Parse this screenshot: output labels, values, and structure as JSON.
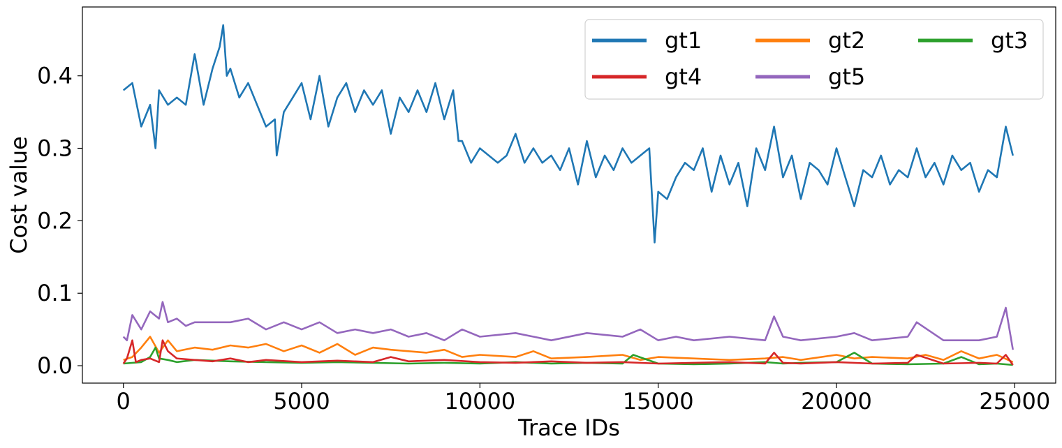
{
  "chart_data": {
    "type": "line",
    "title": "",
    "xlabel": "Trace IDs",
    "ylabel": "Cost value",
    "xlim": [
      -1150,
      26150
    ],
    "ylim": [
      -0.024,
      0.495
    ],
    "xticks": [
      0,
      5000,
      10000,
      15000,
      20000,
      25000
    ],
    "xtick_labels": [
      "0",
      "5000",
      "10000",
      "15000",
      "20000",
      "25000"
    ],
    "yticks": [
      0.0,
      0.1,
      0.2,
      0.3,
      0.4
    ],
    "ytick_labels": [
      "0.0",
      "0.1",
      "0.2",
      "0.3",
      "0.4"
    ],
    "grid": false,
    "legend": {
      "placement": "top-right",
      "columns": 3
    },
    "series": [
      {
        "name": "gt1",
        "color": "#1f77b4",
        "x": [
          0,
          250,
          500,
          750,
          900,
          1000,
          1250,
          1500,
          1750,
          2000,
          2250,
          2500,
          2700,
          2800,
          2900,
          3000,
          3250,
          3500,
          3750,
          4000,
          4250,
          4300,
          4500,
          4750,
          5000,
          5250,
          5500,
          5750,
          6000,
          6250,
          6500,
          6750,
          7000,
          7250,
          7500,
          7750,
          8000,
          8250,
          8500,
          8750,
          9000,
          9250,
          9400,
          9500,
          9750,
          10000,
          10250,
          10500,
          10750,
          11000,
          11250,
          11500,
          11750,
          12000,
          12250,
          12500,
          12750,
          13000,
          13250,
          13500,
          13750,
          14000,
          14250,
          14500,
          14750,
          14900,
          15000,
          15250,
          15500,
          15750,
          16000,
          16250,
          16500,
          16750,
          17000,
          17250,
          17500,
          17750,
          18000,
          18250,
          18500,
          18750,
          19000,
          19250,
          19500,
          19750,
          20000,
          20250,
          20500,
          20750,
          21000,
          21250,
          21500,
          21750,
          22000,
          22250,
          22500,
          22750,
          23000,
          23250,
          23500,
          23750,
          24000,
          24250,
          24500,
          24750,
          24950
        ],
        "values": [
          0.38,
          0.39,
          0.33,
          0.36,
          0.3,
          0.38,
          0.36,
          0.37,
          0.36,
          0.43,
          0.36,
          0.41,
          0.44,
          0.47,
          0.4,
          0.41,
          0.37,
          0.39,
          0.36,
          0.33,
          0.34,
          0.29,
          0.35,
          0.37,
          0.39,
          0.34,
          0.4,
          0.33,
          0.37,
          0.39,
          0.35,
          0.38,
          0.36,
          0.38,
          0.32,
          0.37,
          0.35,
          0.38,
          0.35,
          0.39,
          0.34,
          0.38,
          0.31,
          0.31,
          0.28,
          0.3,
          0.29,
          0.28,
          0.29,
          0.32,
          0.28,
          0.3,
          0.28,
          0.29,
          0.27,
          0.3,
          0.25,
          0.31,
          0.26,
          0.29,
          0.27,
          0.3,
          0.28,
          0.29,
          0.3,
          0.17,
          0.24,
          0.23,
          0.26,
          0.28,
          0.27,
          0.3,
          0.24,
          0.29,
          0.25,
          0.28,
          0.22,
          0.3,
          0.27,
          0.33,
          0.26,
          0.29,
          0.23,
          0.28,
          0.27,
          0.25,
          0.3,
          0.26,
          0.22,
          0.27,
          0.26,
          0.29,
          0.25,
          0.27,
          0.26,
          0.3,
          0.26,
          0.28,
          0.25,
          0.29,
          0.27,
          0.28,
          0.24,
          0.27,
          0.26,
          0.33,
          0.29
        ]
      },
      {
        "name": "gt2",
        "color": "#ff7f0e",
        "x": [
          0,
          250,
          500,
          750,
          1000,
          1250,
          1500,
          2000,
          2500,
          3000,
          3500,
          4000,
          4500,
          5000,
          5500,
          6000,
          6500,
          7000,
          7500,
          8000,
          8500,
          9000,
          9500,
          10000,
          11000,
          11500,
          12000,
          13000,
          14000,
          14500,
          15000,
          16000,
          17000,
          18000,
          18500,
          19000,
          20000,
          20500,
          21000,
          22000,
          22500,
          23000,
          23500,
          24000,
          24500,
          24950
        ],
        "values": [
          0.008,
          0.012,
          0.025,
          0.04,
          0.018,
          0.035,
          0.02,
          0.025,
          0.022,
          0.028,
          0.025,
          0.03,
          0.02,
          0.028,
          0.018,
          0.03,
          0.015,
          0.025,
          0.022,
          0.02,
          0.018,
          0.022,
          0.012,
          0.015,
          0.012,
          0.02,
          0.01,
          0.012,
          0.015,
          0.008,
          0.012,
          0.01,
          0.008,
          0.01,
          0.012,
          0.008,
          0.015,
          0.01,
          0.012,
          0.01,
          0.015,
          0.008,
          0.02,
          0.01,
          0.015,
          0.005
        ]
      },
      {
        "name": "gt3",
        "color": "#2ca02c",
        "x": [
          0,
          500,
          750,
          900,
          1000,
          1250,
          1500,
          2000,
          3000,
          4000,
          5000,
          6000,
          7000,
          8000,
          9000,
          10000,
          11000,
          12000,
          13000,
          14000,
          14300,
          15000,
          16000,
          17000,
          18000,
          18500,
          19000,
          20000,
          20500,
          21000,
          22000,
          23000,
          23500,
          24000,
          24500,
          24950
        ],
        "values": [
          0.003,
          0.005,
          0.012,
          0.025,
          0.01,
          0.008,
          0.005,
          0.008,
          0.006,
          0.005,
          0.004,
          0.005,
          0.004,
          0.003,
          0.004,
          0.003,
          0.005,
          0.003,
          0.004,
          0.003,
          0.015,
          0.003,
          0.002,
          0.003,
          0.005,
          0.003,
          0.004,
          0.005,
          0.018,
          0.003,
          0.002,
          0.003,
          0.012,
          0.002,
          0.003,
          0.001
        ]
      },
      {
        "name": "gt4",
        "color": "#d62728",
        "x": [
          0,
          100,
          250,
          350,
          500,
          750,
          1000,
          1100,
          1250,
          1500,
          2000,
          2500,
          3000,
          3500,
          4000,
          5000,
          6000,
          7000,
          7500,
          8000,
          9000,
          10000,
          11000,
          12000,
          13000,
          14000,
          15000,
          16000,
          17000,
          18000,
          18250,
          18500,
          19000,
          20000,
          21000,
          22000,
          22250,
          23000,
          24000,
          24500,
          24750,
          24950
        ],
        "values": [
          0.003,
          0.01,
          0.035,
          0.005,
          0.008,
          0.01,
          0.005,
          0.035,
          0.02,
          0.01,
          0.008,
          0.006,
          0.01,
          0.005,
          0.008,
          0.005,
          0.007,
          0.005,
          0.012,
          0.006,
          0.008,
          0.005,
          0.004,
          0.006,
          0.004,
          0.005,
          0.003,
          0.004,
          0.005,
          0.003,
          0.018,
          0.004,
          0.003,
          0.005,
          0.003,
          0.004,
          0.015,
          0.003,
          0.004,
          0.003,
          0.015,
          0.001
        ]
      },
      {
        "name": "gt5",
        "color": "#9467bd",
        "x": [
          0,
          100,
          250,
          500,
          750,
          1000,
          1100,
          1250,
          1500,
          1750,
          2000,
          2500,
          3000,
          3500,
          4000,
          4500,
          5000,
          5500,
          6000,
          6500,
          7000,
          7500,
          8000,
          8500,
          9000,
          9500,
          10000,
          11000,
          12000,
          13000,
          14000,
          14500,
          15000,
          15500,
          16000,
          17000,
          18000,
          18250,
          18500,
          19000,
          20000,
          20500,
          21000,
          22000,
          22250,
          23000,
          24000,
          24500,
          24750,
          24950
        ],
        "values": [
          0.04,
          0.035,
          0.07,
          0.05,
          0.075,
          0.065,
          0.088,
          0.06,
          0.065,
          0.055,
          0.06,
          0.06,
          0.06,
          0.065,
          0.05,
          0.06,
          0.05,
          0.06,
          0.045,
          0.05,
          0.045,
          0.05,
          0.04,
          0.045,
          0.035,
          0.05,
          0.04,
          0.045,
          0.035,
          0.045,
          0.04,
          0.05,
          0.035,
          0.04,
          0.035,
          0.04,
          0.035,
          0.068,
          0.04,
          0.035,
          0.04,
          0.045,
          0.035,
          0.04,
          0.06,
          0.035,
          0.035,
          0.04,
          0.08,
          0.022
        ]
      }
    ]
  }
}
